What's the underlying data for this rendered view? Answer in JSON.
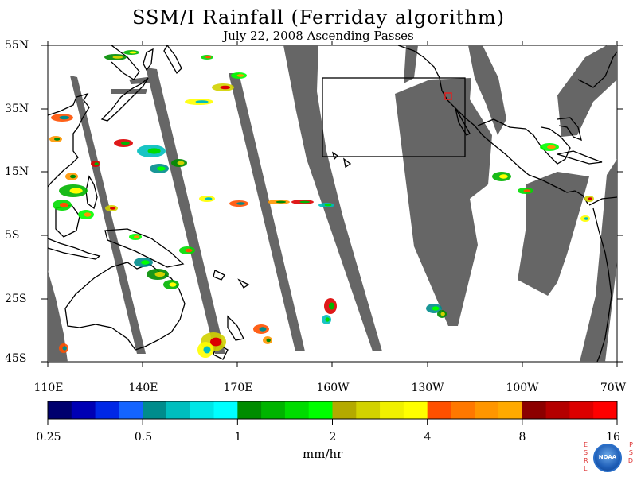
{
  "title": "SSM/I Rainfall (Ferriday algorithm)",
  "subtitle": "July 22, 2008  Ascending Passes",
  "map": {
    "lat_labels": [
      "55N",
      "35N",
      "15N",
      "5S",
      "25S",
      "45S"
    ],
    "lon_labels": [
      "110E",
      "140E",
      "170E",
      "160W",
      "130W",
      "100W",
      "70W"
    ],
    "swath_color": "#666666",
    "coast_color": "#000000",
    "highlight_box_color": "#000000",
    "marker_color": "#e02020"
  },
  "colorbar": {
    "colors": [
      "#00006e",
      "#0000b4",
      "#0028e6",
      "#1464ff",
      "#008c8c",
      "#00bebe",
      "#00e6e6",
      "#00ffff",
      "#008c00",
      "#00b400",
      "#00dc00",
      "#00ff00",
      "#b4aa00",
      "#d2d200",
      "#f0f000",
      "#ffff00",
      "#ff5000",
      "#ff7800",
      "#ff9600",
      "#ffaa00",
      "#8c0000",
      "#b40000",
      "#dc0000",
      "#ff0000"
    ],
    "tick_labels": [
      "0.25",
      "0.5",
      "1",
      "2",
      "4",
      "8",
      "16"
    ],
    "units": "mm/hr"
  },
  "logo": {
    "left_letters": "ESRL",
    "right_letters": "PSD",
    "seal_text": "NOAA"
  }
}
